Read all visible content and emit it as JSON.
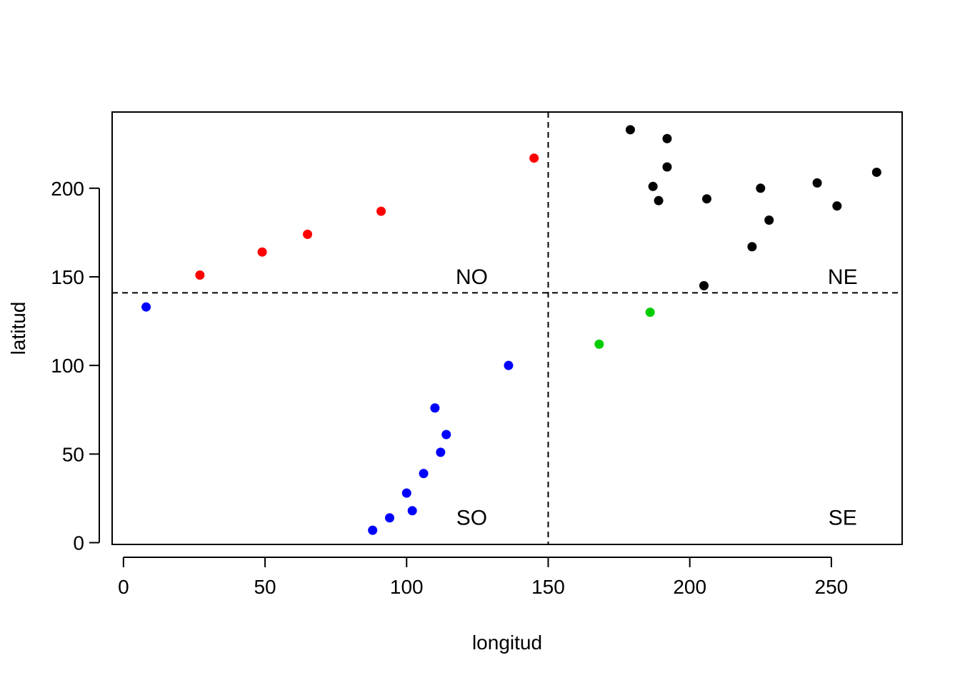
{
  "chart_data": {
    "type": "scatter",
    "title": "",
    "xlabel": "longitud",
    "ylabel": "latitud",
    "xlim": [
      -4,
      275
    ],
    "ylim": [
      -1,
      243
    ],
    "x_ticks": [
      0,
      50,
      100,
      150,
      200,
      250
    ],
    "y_ticks": [
      0,
      50,
      100,
      150,
      200
    ],
    "grid": false,
    "reference_lines": {
      "vertical_x": 150,
      "horizontal_y": 141,
      "style": "dashed"
    },
    "quadrant_labels": [
      {
        "text": "NO",
        "x": 123,
        "y": 146
      },
      {
        "text": "NE",
        "x": 254,
        "y": 146
      },
      {
        "text": "SO",
        "x": 123,
        "y": 10
      },
      {
        "text": "SE",
        "x": 254,
        "y": 10
      }
    ],
    "series": [
      {
        "color": "#ff0000",
        "points": [
          [
            27,
            151
          ],
          [
            49,
            164
          ],
          [
            65,
            174
          ],
          [
            91,
            187
          ],
          [
            145,
            217
          ]
        ]
      },
      {
        "color": "#000000",
        "points": [
          [
            179,
            233
          ],
          [
            192,
            228
          ],
          [
            192,
            212
          ],
          [
            187,
            201
          ],
          [
            189,
            193
          ],
          [
            206,
            194
          ],
          [
            225,
            200
          ],
          [
            245,
            203
          ],
          [
            266,
            209
          ],
          [
            252,
            190
          ],
          [
            228,
            182
          ],
          [
            222,
            167
          ],
          [
            205,
            145
          ]
        ]
      },
      {
        "color": "#0000ff",
        "points": [
          [
            8,
            133
          ],
          [
            136,
            100
          ],
          [
            110,
            76
          ],
          [
            114,
            61
          ],
          [
            112,
            51
          ],
          [
            106,
            39
          ],
          [
            100,
            28
          ],
          [
            102,
            18
          ],
          [
            94,
            14
          ],
          [
            88,
            7
          ]
        ]
      },
      {
        "color": "#00cd00",
        "points": [
          [
            168,
            112
          ],
          [
            186,
            130
          ]
        ]
      }
    ]
  }
}
